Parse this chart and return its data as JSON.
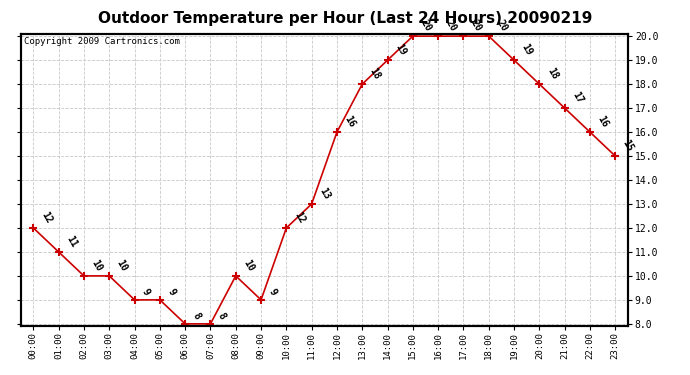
{
  "title": "Outdoor Temperature per Hour (Last 24 Hours) 20090219",
  "copyright": "Copyright 2009 Cartronics.com",
  "hours": [
    "00:00",
    "01:00",
    "02:00",
    "03:00",
    "04:00",
    "05:00",
    "06:00",
    "07:00",
    "08:00",
    "09:00",
    "10:00",
    "11:00",
    "12:00",
    "13:00",
    "14:00",
    "15:00",
    "16:00",
    "17:00",
    "18:00",
    "19:00",
    "20:00",
    "21:00",
    "22:00",
    "23:00"
  ],
  "temperatures": [
    12,
    11,
    10,
    10,
    9,
    9,
    8,
    8,
    10,
    9,
    12,
    13,
    16,
    18,
    19,
    20,
    20,
    20,
    20,
    19,
    18,
    17,
    16,
    15
  ],
  "ylim_min": 8.0,
  "ylim_max": 20.0,
  "line_color": "#cc0000",
  "marker_color": "#cc0000",
  "grid_color": "#c8c8c8",
  "bg_color": "#ffffff",
  "title_fontsize": 11,
  "label_fontsize": 7,
  "copyright_fontsize": 6.5,
  "yticks": [
    8.0,
    9.0,
    10.0,
    11.0,
    12.0,
    13.0,
    14.0,
    15.0,
    16.0,
    17.0,
    18.0,
    19.0,
    20.0
  ]
}
